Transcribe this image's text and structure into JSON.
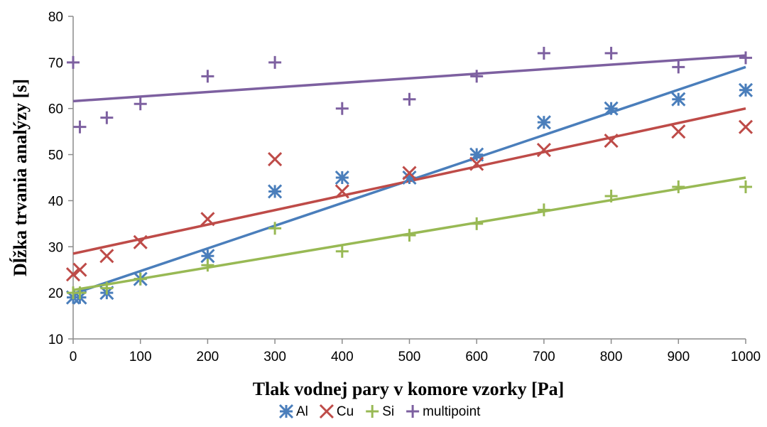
{
  "chart_data": {
    "type": "scatter",
    "title": "",
    "xlabel": "Tlak vodnej pary v komore vzorky [Pa]",
    "ylabel": "Dĺžka trvania analýzy [s]",
    "xlim": [
      0,
      1000
    ],
    "ylim": [
      10,
      80
    ],
    "xticks": [
      "0",
      "100",
      "200",
      "300",
      "400",
      "500",
      "600",
      "700",
      "800",
      "900",
      "1000"
    ],
    "yticks": [
      "10",
      "20",
      "30",
      "40",
      "50",
      "60",
      "70",
      "80"
    ],
    "grid": false,
    "legend_position": "bottom",
    "series": [
      {
        "name": "Al",
        "marker": "asterisk",
        "color": "#4a7ebb",
        "x": [
          0,
          10,
          50,
          100,
          200,
          300,
          400,
          500,
          600,
          700,
          800,
          900,
          1000
        ],
        "y": [
          19,
          19,
          20,
          23,
          28,
          42,
          45,
          45,
          50,
          57,
          60,
          62,
          64
        ],
        "trendline": [
          [
            0,
            19.8
          ],
          [
            1000,
            69
          ]
        ]
      },
      {
        "name": "Cu",
        "marker": "x",
        "color": "#be4b48",
        "x": [
          0,
          10,
          50,
          100,
          200,
          300,
          400,
          500,
          600,
          700,
          800,
          900,
          1000
        ],
        "y": [
          24,
          25,
          28,
          31,
          36,
          49,
          42,
          46,
          48,
          51,
          53,
          55,
          56
        ],
        "trendline": [
          [
            0,
            28.5
          ],
          [
            1000,
            60
          ]
        ]
      },
      {
        "name": "Si",
        "marker": "plus",
        "color": "#98b954",
        "x": [
          0,
          10,
          50,
          100,
          200,
          300,
          400,
          500,
          600,
          700,
          800,
          900,
          1000
        ],
        "y": [
          20,
          20,
          21,
          23,
          26,
          34,
          29,
          32.5,
          35,
          38,
          41,
          43,
          43
        ],
        "trendline": [
          [
            0,
            20.6
          ],
          [
            1000,
            45
          ]
        ]
      },
      {
        "name": "multipoint",
        "marker": "plus",
        "color": "#7d60a0",
        "x": [
          0,
          10,
          50,
          100,
          200,
          300,
          400,
          500,
          600,
          700,
          800,
          900,
          1000
        ],
        "y": [
          70,
          56,
          58,
          61,
          67,
          70,
          60,
          62,
          67,
          72,
          72,
          69,
          71
        ],
        "trendline": [
          [
            0,
            61.6
          ],
          [
            1000,
            71.5
          ]
        ]
      }
    ]
  }
}
